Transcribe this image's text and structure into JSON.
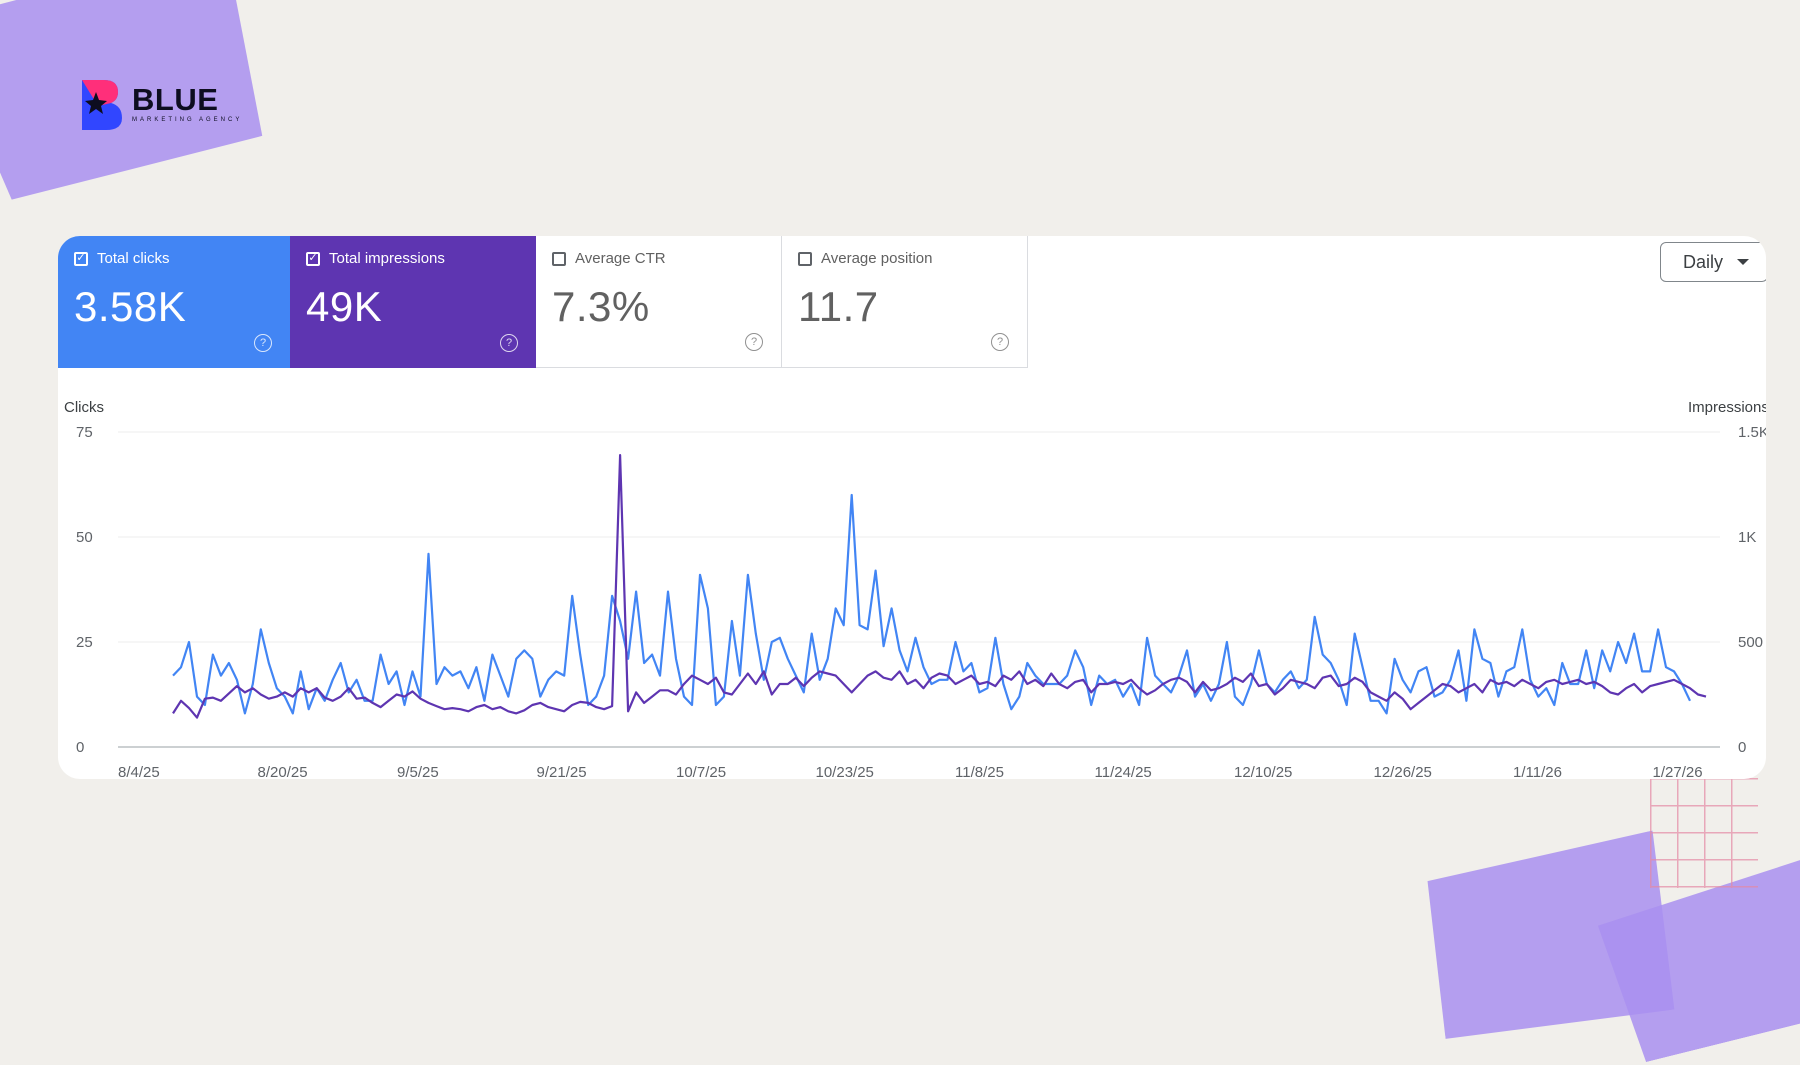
{
  "brand": {
    "name": "BLUE",
    "tagline": "MARKETING AGENCY"
  },
  "metrics": [
    {
      "label": "Total clicks",
      "value": "3.58K",
      "checked": true,
      "color": "#4285f4"
    },
    {
      "label": "Total impressions",
      "value": "49K",
      "checked": true,
      "color": "#5e35b1"
    },
    {
      "label": "Average CTR",
      "value": "7.3%",
      "checked": false
    },
    {
      "label": "Average position",
      "value": "11.7",
      "checked": false
    }
  ],
  "granularity": {
    "selected": "Daily"
  },
  "chart_data": {
    "type": "line",
    "left_axis": {
      "title": "Clicks",
      "ticks": [
        "0",
        "25",
        "50",
        "75"
      ],
      "ylim": [
        0,
        75
      ]
    },
    "right_axis": {
      "title": "Impressions",
      "ticks": [
        "0",
        "500",
        "1K",
        "1.5K"
      ],
      "ylim": [
        0,
        1500
      ]
    },
    "x_tick_labels": [
      "8/4/25",
      "8/20/25",
      "9/5/25",
      "9/21/25",
      "10/7/25",
      "10/23/25",
      "11/8/25",
      "11/24/25",
      "12/10/25",
      "12/26/25",
      "1/11/26",
      "1/27/26"
    ],
    "grid": true,
    "series": [
      {
        "name": "Clicks",
        "axis": "left",
        "color": "#4285f4",
        "values": [
          17,
          19,
          25,
          12,
          10,
          22,
          17,
          20,
          16,
          8,
          15,
          28,
          20,
          14,
          12,
          8,
          18,
          9,
          14,
          11,
          16,
          20,
          13,
          16,
          11,
          11,
          22,
          15,
          18,
          10,
          18,
          12,
          46,
          15,
          19,
          17,
          18,
          14,
          19,
          11,
          22,
          17,
          12,
          21,
          23,
          21,
          12,
          16,
          18,
          17,
          36,
          22,
          10,
          12,
          17,
          36,
          30,
          21,
          37,
          20,
          22,
          17,
          37,
          21,
          12,
          10,
          41,
          33,
          10,
          12,
          30,
          17,
          41,
          27,
          16,
          25,
          26,
          21,
          17,
          13,
          27,
          16,
          21,
          33,
          29,
          60,
          29,
          28,
          42,
          24,
          33,
          23,
          18,
          26,
          19,
          15,
          16,
          16,
          25,
          18,
          20,
          13,
          14,
          26,
          15,
          9,
          12,
          20,
          17,
          15,
          15,
          15,
          17,
          23,
          19,
          10,
          17,
          15,
          16,
          12,
          15,
          10,
          26,
          17,
          15,
          13,
          17,
          23,
          12,
          15,
          11,
          15,
          25,
          12,
          10,
          15,
          23,
          15,
          13,
          16,
          18,
          14,
          16,
          31,
          22,
          20,
          16,
          10,
          27,
          19,
          11,
          11,
          8,
          21,
          16,
          13,
          18,
          19,
          12,
          13,
          16,
          23,
          11,
          28,
          21,
          20,
          12,
          18,
          19,
          28,
          16,
          12,
          14,
          10,
          20,
          15,
          15,
          23,
          14,
          23,
          18,
          25,
          20,
          27,
          18,
          18,
          28,
          19,
          18,
          15,
          11
        ],
        "scale": "approximate trace"
      },
      {
        "name": "Impressions",
        "axis": "right",
        "color": "#5e35b1",
        "values": [
          160,
          220,
          185,
          140,
          230,
          235,
          220,
          255,
          290,
          260,
          280,
          250,
          230,
          240,
          260,
          240,
          280,
          260,
          280,
          235,
          220,
          240,
          280,
          230,
          235,
          210,
          190,
          220,
          250,
          240,
          265,
          230,
          210,
          195,
          180,
          185,
          180,
          170,
          190,
          200,
          180,
          190,
          170,
          160,
          175,
          200,
          210,
          190,
          180,
          170,
          200,
          215,
          210,
          190,
          180,
          195,
          1390,
          170,
          260,
          210,
          240,
          270,
          270,
          250,
          300,
          340,
          320,
          300,
          330,
          260,
          250,
          300,
          350,
          300,
          360,
          250,
          300,
          300,
          330,
          290,
          330,
          360,
          350,
          340,
          300,
          260,
          300,
          340,
          360,
          330,
          320,
          360,
          300,
          320,
          280,
          330,
          350,
          340,
          300,
          320,
          340,
          300,
          310,
          290,
          340,
          320,
          360,
          300,
          320,
          290,
          350,
          300,
          280,
          310,
          320,
          260,
          300,
          300,
          310,
          300,
          320,
          280,
          250,
          270,
          300,
          320,
          330,
          310,
          260,
          310,
          270,
          280,
          300,
          330,
          310,
          350,
          290,
          300,
          250,
          280,
          320,
          310,
          300,
          280,
          330,
          340,
          290,
          300,
          330,
          310,
          260,
          240,
          220,
          260,
          230,
          180,
          210,
          240,
          270,
          300,
          290,
          260,
          280,
          300,
          260,
          320,
          300,
          310,
          290,
          320,
          300,
          280,
          310,
          320,
          300,
          310,
          320,
          300,
          310,
          290,
          260,
          250,
          280,
          300,
          260,
          290,
          300,
          310,
          320,
          300,
          280,
          250,
          240
        ],
        "scale": "approximate trace"
      }
    ]
  }
}
